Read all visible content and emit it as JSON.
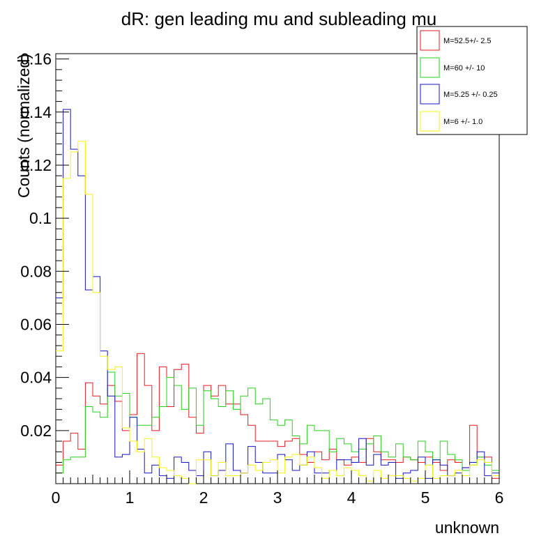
{
  "chart_data": {
    "type": "line",
    "title": "dR: gen leading mu and subleading mu",
    "xlabel": "unknown",
    "ylabel": "Counts (normalized)",
    "xlim": [
      0,
      6
    ],
    "ylim": [
      0,
      0.162
    ],
    "x_ticks": [
      0,
      1,
      2,
      3,
      4,
      5,
      6
    ],
    "x_tick_labels": [
      "0",
      "1",
      "2",
      "3",
      "4",
      "5",
      "6"
    ],
    "y_ticks": [
      0.02,
      0.04,
      0.06,
      0.08,
      0.1,
      0.12,
      0.14,
      0.16
    ],
    "y_tick_labels": [
      "0.02",
      "0.04",
      "0.06",
      "0.08",
      "0.1",
      "0.12",
      "0.14",
      "0.16"
    ],
    "grid": false,
    "legend_position": "top-right",
    "bin_width": 0.1,
    "series": [
      {
        "name": "M=52.5+/- 2.5",
        "color": "#e8191f",
        "values": [
          0.007,
          0.016,
          0.019,
          0.013,
          0.038,
          0.033,
          0.03,
          0.037,
          0.031,
          0.02,
          0.026,
          0.049,
          0.037,
          0.02,
          0.044,
          0.029,
          0.043,
          0.045,
          0.025,
          0.019,
          0.037,
          0.033,
          0.037,
          0.03,
          0.03,
          0.026,
          0.022,
          0.016,
          0.016,
          0.016,
          0.014,
          0.016,
          0.017,
          0.011,
          0.008,
          0.012,
          0.009,
          0.013,
          0.009,
          0.007,
          0.01,
          0.008,
          0.017,
          0.012,
          0.009,
          0.009,
          0.008,
          0.01,
          0.009,
          0.008,
          0.01,
          0.008,
          0.005,
          0.009,
          0.008,
          0.006,
          0.022,
          0.01,
          0.01,
          0.002
        ]
      },
      {
        "name": "M=60 +/- 10",
        "color": "#22d419",
        "values": [
          0.004,
          0.009,
          0.01,
          0.01,
          0.029,
          0.027,
          0.025,
          0.042,
          0.033,
          0.034,
          0.025,
          0.022,
          0.022,
          0.025,
          0.029,
          0.04,
          0.037,
          0.028,
          0.036,
          0.022,
          0.035,
          0.032,
          0.029,
          0.035,
          0.028,
          0.033,
          0.036,
          0.03,
          0.032,
          0.024,
          0.022,
          0.024,
          0.018,
          0.015,
          0.022,
          0.02,
          0.02,
          0.012,
          0.017,
          0.015,
          0.012,
          0.013,
          0.015,
          0.018,
          0.012,
          0.01,
          0.015,
          0.01,
          0.009,
          0.016,
          0.012,
          0.009,
          0.016,
          0.011,
          0.009,
          0.005,
          0.007,
          0.01,
          0.007,
          0.005
        ]
      },
      {
        "name": "M=5.25 +/- 0.25",
        "color": "#1515c8",
        "values": [
          0.07,
          0.141,
          0.126,
          0.116,
          0.073,
          0.078,
          0.05,
          0.033,
          0.01,
          0.011,
          0.025,
          0.013,
          0.004,
          0.007,
          0.003,
          0.002,
          0.01,
          0.008,
          0.005,
          0.003,
          0.012,
          0.003,
          0.005,
          0.015,
          0.005,
          0.004,
          0.014,
          0.008,
          0.004,
          0.004,
          0.011,
          0.009,
          0.005,
          0.007,
          0.012,
          0.004,
          0.004,
          0.005,
          0.009,
          0.009,
          0.008,
          0.017,
          0.007,
          0.011,
          0.007,
          0.008,
          0.002,
          0.004,
          0.005,
          0.01,
          0.002,
          0.009,
          0.007,
          0.003,
          0.004,
          0.006,
          0.008,
          0.012,
          0.003,
          0.004
        ]
      },
      {
        "name": "M=6 +/- 1.0",
        "color": "#f7f20f",
        "values": [
          0.05,
          0.115,
          0.125,
          0.129,
          0.109,
          0.072,
          0.048,
          0.043,
          0.044,
          0.021,
          0.016,
          0.012,
          0.017,
          0.01,
          0.006,
          0.005,
          0.003,
          0.002,
          0.0,
          0.009,
          0.009,
          0.003,
          0.008,
          0.003,
          0.003,
          0.004,
          0.007,
          0.005,
          0.008,
          0.009,
          0.004,
          0.01,
          0.011,
          0.007,
          0.01,
          0.006,
          0.002,
          0.005,
          0.003,
          0.006,
          0.005,
          0.003,
          0.001,
          0.005,
          0.002,
          0.003,
          0.003,
          0.002,
          0.001,
          0.002,
          0.007,
          0.002,
          0.003,
          0.003,
          0.005,
          0.003,
          0.007,
          0.009,
          0.008,
          0.003
        ]
      }
    ]
  }
}
